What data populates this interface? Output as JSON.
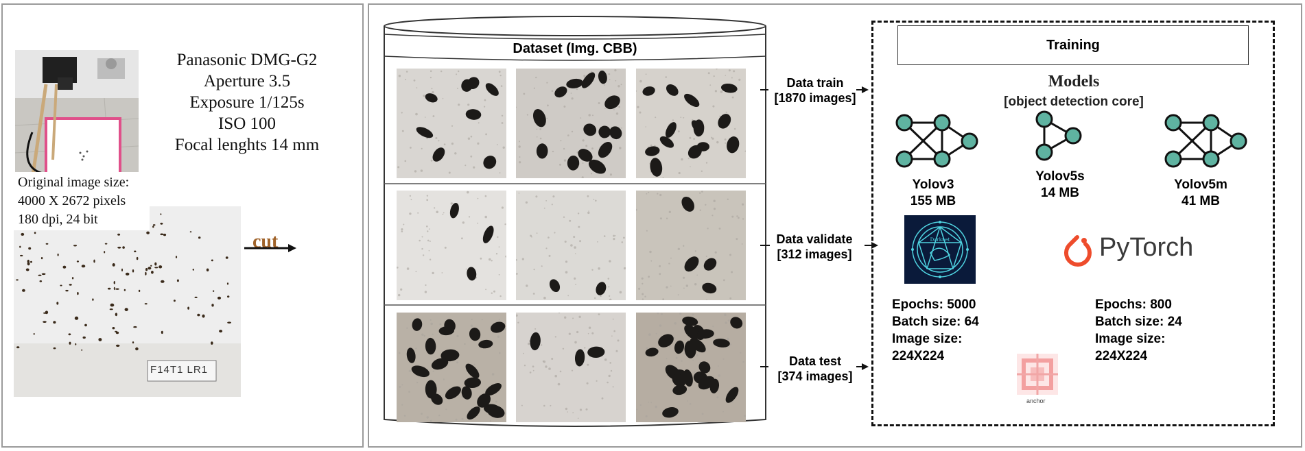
{
  "camera": {
    "model": "Panasonic DMG-G2",
    "aperture": "Aperture 3.5",
    "exposure": "Exposure 1/125s",
    "iso": "ISO 100",
    "focal": "Focal lenghts 14 mm"
  },
  "original": {
    "line1": "Original image size:",
    "line2": "4000 X 2672 pixels",
    "line3": "180 dpi, 24 bit",
    "tag": "F14T1 LR1"
  },
  "cut_label": "cut",
  "dataset": {
    "title": "Dataset (Img. CBB)"
  },
  "splits": {
    "train": {
      "name": "Data train",
      "count": "[1870 images]"
    },
    "validate": {
      "name": "Data validate",
      "count": "[312 images]"
    },
    "test": {
      "name": "Data test",
      "count": "[374 images]"
    }
  },
  "training": {
    "title": "Training",
    "models_title": "Models",
    "models_subtitle": "[object detection core]",
    "models": [
      {
        "name": "Yolov3",
        "size": "155 MB"
      },
      {
        "name": "Yolov5s",
        "size": "14 MB"
      },
      {
        "name": "Yolov5m",
        "size": "41 MB"
      }
    ],
    "darknet_label": "Darknet",
    "pytorch_label": "PyTorch",
    "anchor_label": "anchor",
    "left_params": {
      "epochs": "Epochs: 5000",
      "batch": "Batch size: 64",
      "img_label": "Image size:",
      "img_value": "224X224"
    },
    "right_params": {
      "epochs": "Epochs: 800",
      "batch": "Batch size: 24",
      "img_label": "Image size:",
      "img_value": "224X224"
    }
  },
  "colors": {
    "node_fill": "#5fb3a1",
    "pytorch": "#ee4c2c",
    "darknet_bg": "#0a1a3a",
    "cut_text": "#a0632a",
    "panel_border": "#9a9a9a"
  }
}
